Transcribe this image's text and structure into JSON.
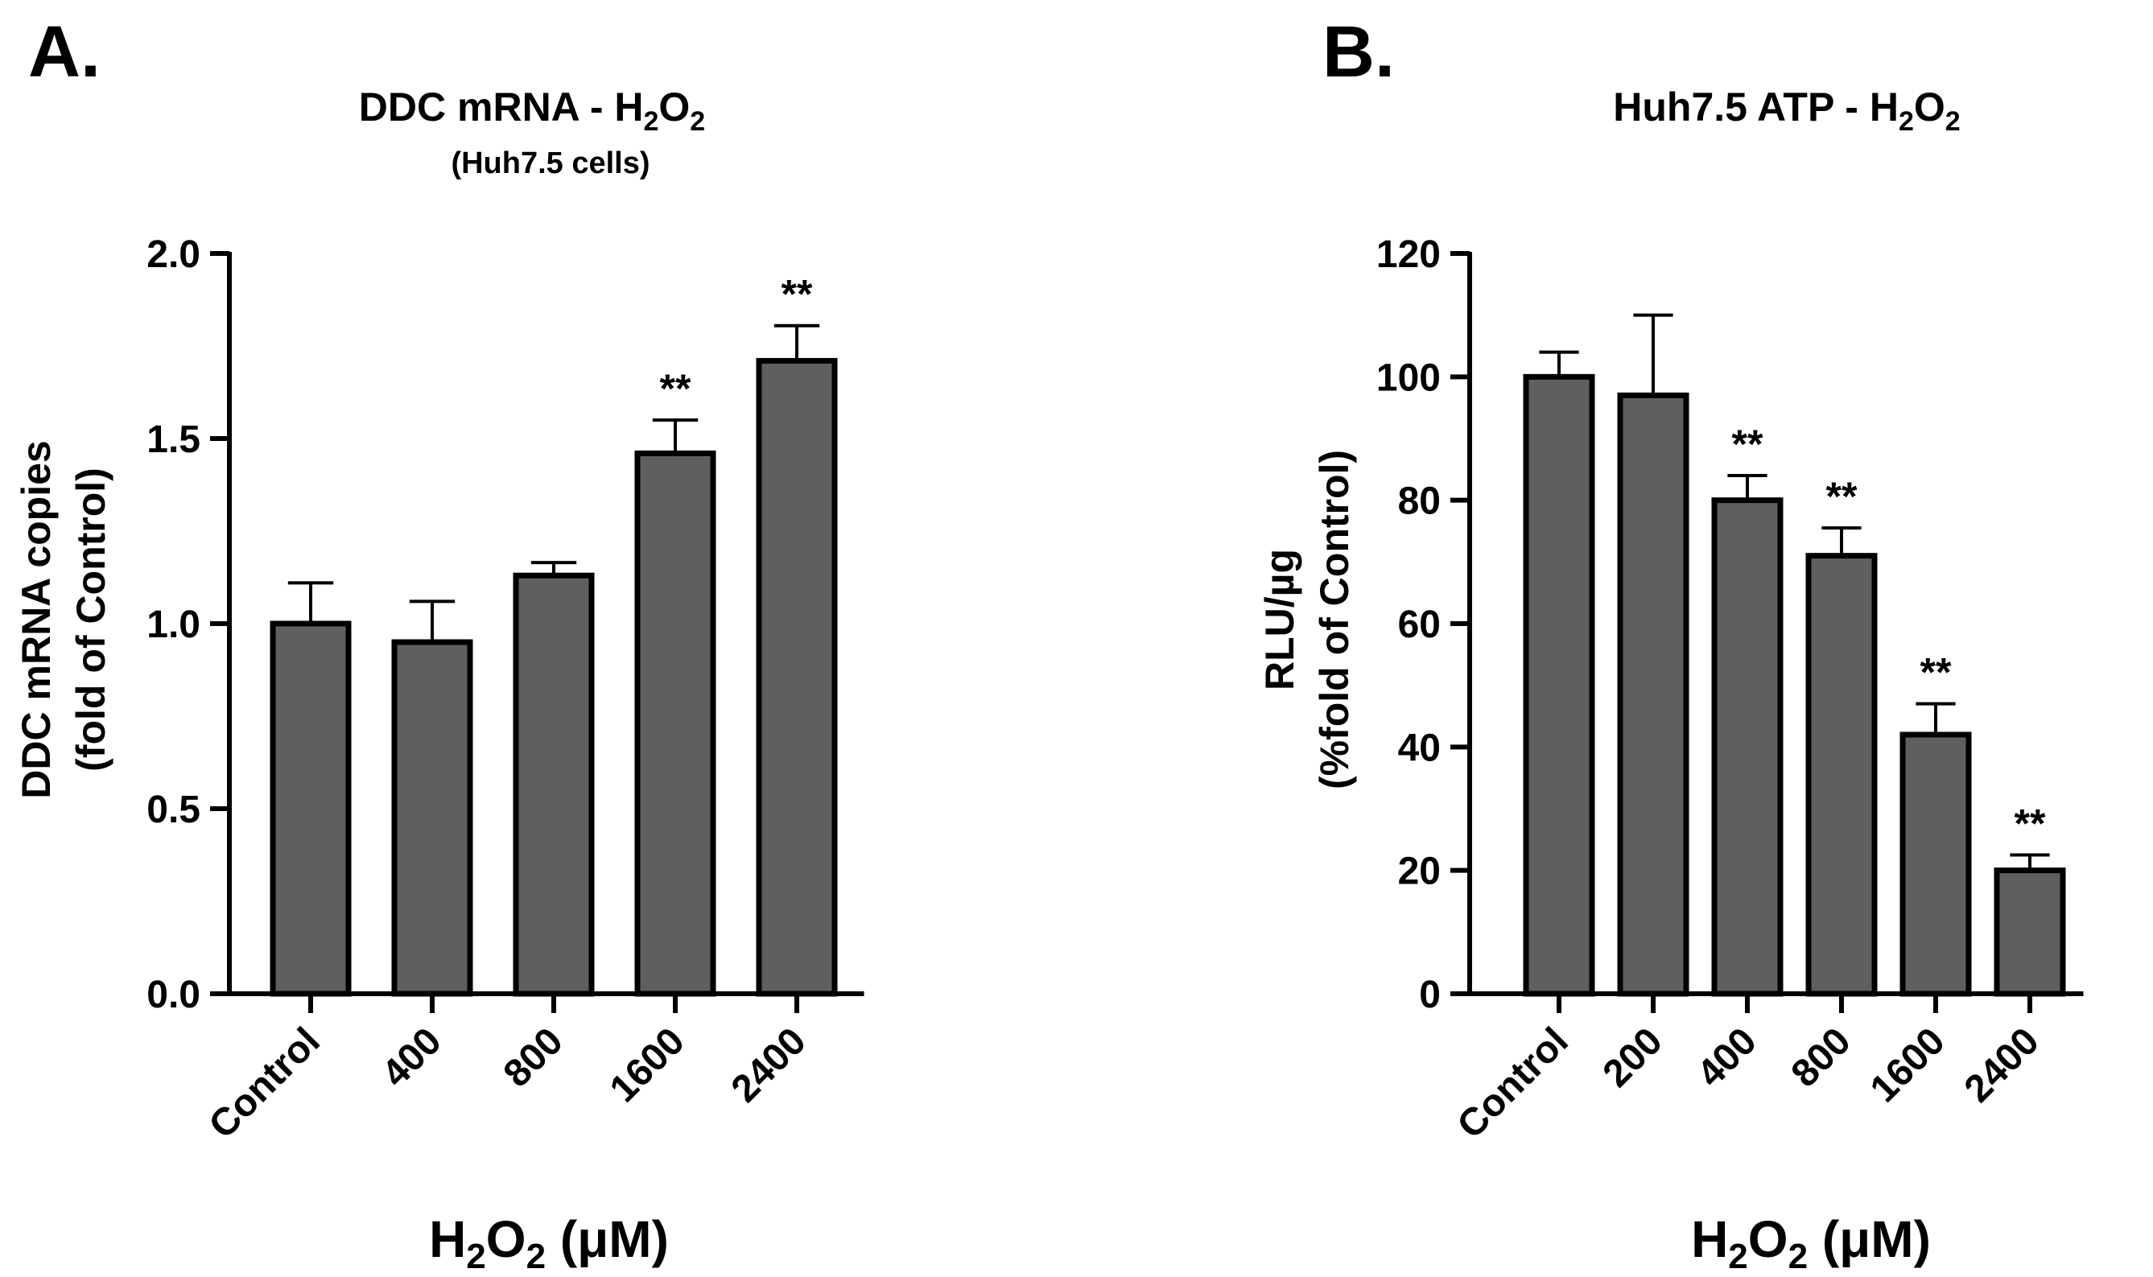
{
  "panels": [
    {
      "label": "A.",
      "title_main": "DDC mRNA - H",
      "title_sub1": "2",
      "title_mid": "O",
      "title_sub2": "2",
      "subtitle": "(Huh7.5 cells)",
      "ylabel_line1": "DDC mRNA copies",
      "ylabel_line2": "(fold of Control)",
      "xlabel_h": "H",
      "xlabel_s1": "2",
      "xlabel_o": "O",
      "xlabel_s2": "2",
      "xlabel_rest": " (μM)"
    },
    {
      "label": "B.",
      "title_main": "Huh7.5 ATP - H",
      "title_sub1": "2",
      "title_mid": "O",
      "title_sub2": "2",
      "subtitle": "",
      "ylabel_line1": "RLU/µg",
      "ylabel_line2": "(%fold of Control)",
      "xlabel_h": "H",
      "xlabel_s1": "2",
      "xlabel_o": "O",
      "xlabel_s2": "2",
      "xlabel_rest": " (μM)"
    }
  ],
  "colors": {
    "bar_fill": "#5f5f5f",
    "bar_stroke": "#000000"
  },
  "chart_data": [
    {
      "type": "bar",
      "title": "DDC mRNA - H2O2",
      "subtitle": "(Huh7.5 cells)",
      "xlabel": "H2O2 (μM)",
      "ylabel": "DDC mRNA copies (fold of Control)",
      "categories": [
        "Control",
        "400",
        "800",
        "1600",
        "2400"
      ],
      "values": [
        1.0,
        0.95,
        1.13,
        1.46,
        1.71
      ],
      "errors": [
        0.11,
        0.11,
        0.035,
        0.09,
        0.095
      ],
      "significance": [
        "",
        "",
        "",
        "**",
        "**"
      ],
      "ylim": [
        0,
        2.0
      ],
      "yticks": [
        0.0,
        0.5,
        1.0,
        1.5,
        2.0
      ],
      "ytick_labels": [
        "0.0",
        "0.5",
        "1.0",
        "1.5",
        "2.0"
      ],
      "grid": false,
      "legend": "none"
    },
    {
      "type": "bar",
      "title": "Huh7.5 ATP - H2O2",
      "xlabel": "H2O2 (μM)",
      "ylabel": "RLU/µg (%fold of Control)",
      "categories": [
        "Control",
        "200",
        "400",
        "800",
        "1600",
        "2400"
      ],
      "values": [
        100,
        97,
        80,
        71,
        42,
        20
      ],
      "errors": [
        4,
        13,
        4,
        4.5,
        5,
        2.5
      ],
      "significance": [
        "",
        "",
        "**",
        "**",
        "**",
        "**"
      ],
      "ylim": [
        0,
        120
      ],
      "yticks": [
        0,
        20,
        40,
        60,
        80,
        100,
        120
      ],
      "ytick_labels": [
        "0",
        "20",
        "40",
        "60",
        "80",
        "100",
        "120"
      ],
      "grid": false,
      "legend": "none"
    }
  ]
}
